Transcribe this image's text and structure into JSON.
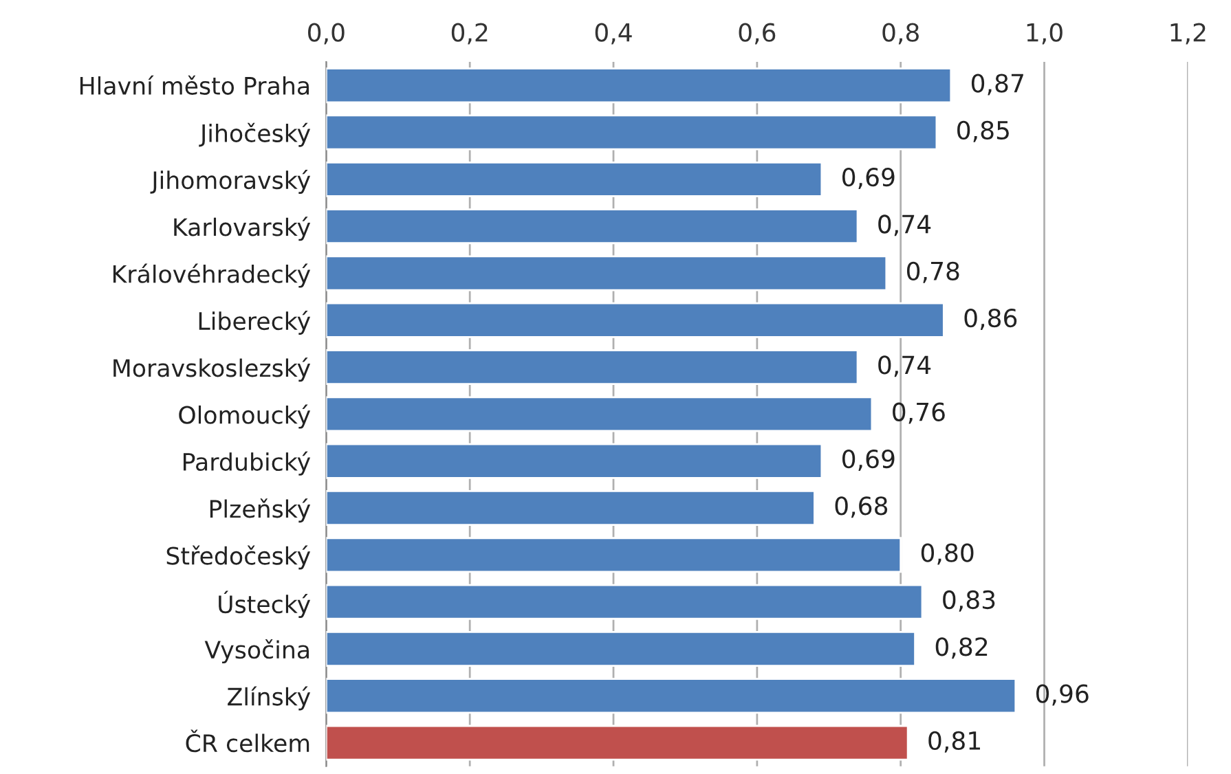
{
  "chart_data": {
    "type": "bar",
    "orientation": "horizontal",
    "categories": [
      "Hlavní město Praha",
      "Jihočeský",
      "Jihomoravský",
      "Karlovarský",
      "Královéhradecký",
      "Liberecký",
      "Moravskoslezský",
      "Olomoucký",
      "Pardubický",
      "Plzeňský",
      "Středočeský",
      "Ústecký",
      "Vysočina",
      "Zlínský",
      "ČR celkem"
    ],
    "values": [
      0.87,
      0.85,
      0.69,
      0.74,
      0.78,
      0.86,
      0.74,
      0.76,
      0.69,
      0.68,
      0.8,
      0.83,
      0.82,
      0.96,
      0.81
    ],
    "value_labels": [
      "0,87",
      "0,85",
      "0,69",
      "0,74",
      "0,78",
      "0,86",
      "0,74",
      "0,76",
      "0,69",
      "0,68",
      "0,80",
      "0,83",
      "0,82",
      "0,96",
      "0,81"
    ],
    "colors": [
      "#4f81bd",
      "#4f81bd",
      "#4f81bd",
      "#4f81bd",
      "#4f81bd",
      "#4f81bd",
      "#4f81bd",
      "#4f81bd",
      "#4f81bd",
      "#4f81bd",
      "#4f81bd",
      "#4f81bd",
      "#4f81bd",
      "#4f81bd",
      "#c0504d"
    ],
    "xlim": [
      0,
      1.2
    ],
    "xticks": [
      {
        "value": 0,
        "label": "0,0"
      },
      {
        "value": 0.2,
        "label": "0,2"
      },
      {
        "value": 0.4,
        "label": "0,4"
      },
      {
        "value": 0.6,
        "label": "0,6"
      },
      {
        "value": 0.8,
        "label": "0,8"
      },
      {
        "value": 1.0,
        "label": "1,0"
      },
      {
        "value": 1.2,
        "label": "1,2"
      }
    ],
    "grid": "x",
    "legend": false
  }
}
